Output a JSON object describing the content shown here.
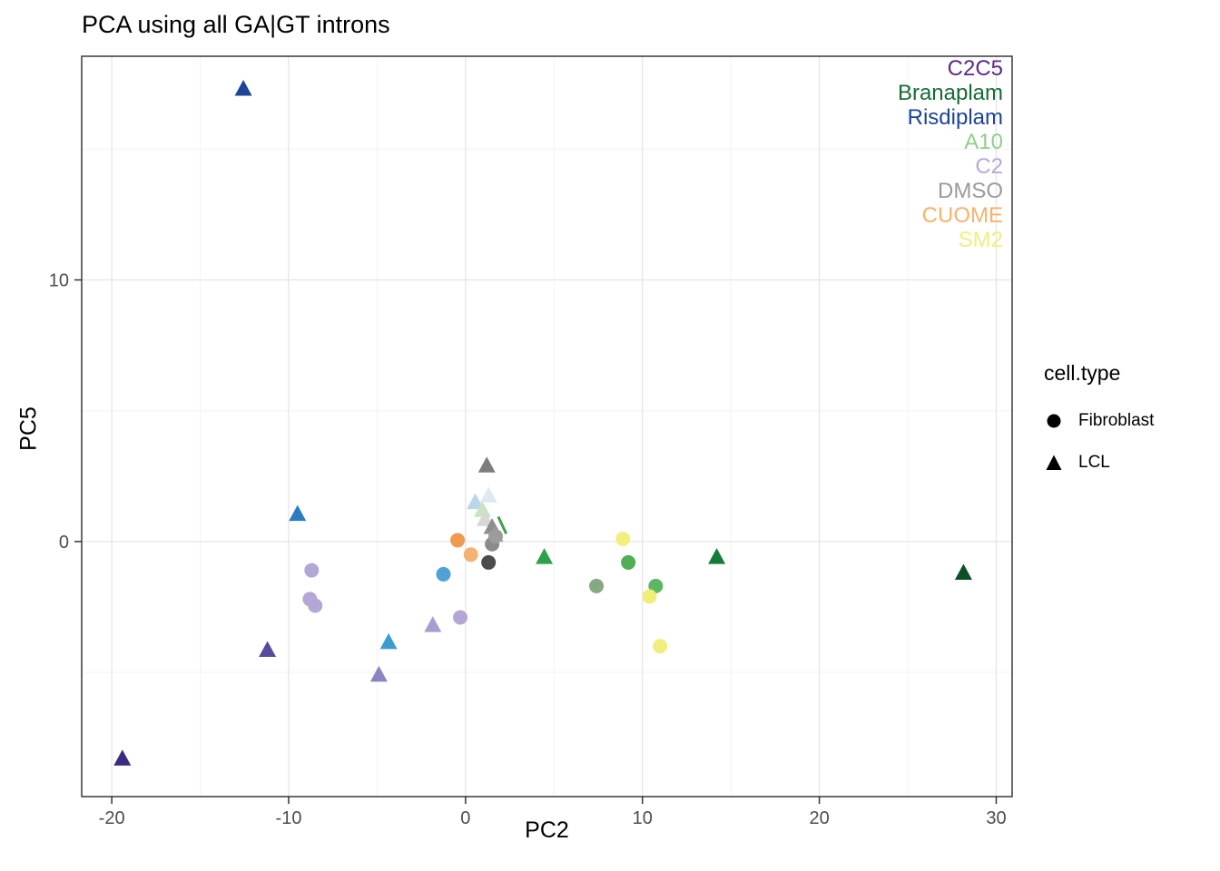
{
  "title": "PCA using all GA|GT introns",
  "axes": {
    "x_label": "PC2",
    "y_label": "PC5"
  },
  "legend": {
    "title": "cell.type",
    "items": [
      {
        "label": "Fibroblast",
        "shape": "circle"
      },
      {
        "label": "LCL",
        "shape": "triangle"
      }
    ]
  },
  "treatments": [
    {
      "label": "C2C5",
      "color": "#5b2a86"
    },
    {
      "label": "Branaplam",
      "color": "#166b35"
    },
    {
      "label": "Risdiplam",
      "color": "#1c4595"
    },
    {
      "label": "A10",
      "color": "#8fd08a"
    },
    {
      "label": "C2",
      "color": "#b6a9d8"
    },
    {
      "label": "DMSO",
      "color": "#9b9b9b"
    },
    {
      "label": "CUOME",
      "color": "#f6b26b"
    },
    {
      "label": "SM2",
      "color": "#f2ee7a"
    }
  ],
  "chart_data": {
    "type": "scatter",
    "title": "PCA using all GA|GT introns",
    "xlabel": "PC2",
    "ylabel": "PC5",
    "xlim": [
      -21.7,
      30.9
    ],
    "ylim": [
      -9.75,
      18.55
    ],
    "x_ticks": [
      -20,
      -10,
      0,
      10,
      20,
      30
    ],
    "y_ticks": [
      0,
      10
    ],
    "x_minor": [
      -15,
      -5,
      5,
      15,
      25
    ],
    "y_minor": [
      -5,
      5,
      15
    ],
    "grid": true,
    "legend_position": "right",
    "points": [
      {
        "x": -12.56,
        "y": 17.3,
        "shape": "triangle",
        "cell_type": "LCL",
        "treatment": "Risdiplam",
        "color": "#1b4596"
      },
      {
        "x": -19.4,
        "y": -8.3,
        "shape": "triangle",
        "cell_type": "LCL",
        "treatment": "C2C5",
        "color": "#3c2b80"
      },
      {
        "x": -11.2,
        "y": -4.15,
        "shape": "triangle",
        "cell_type": "LCL",
        "treatment": "C2C5",
        "color": "#5a4a9f"
      },
      {
        "x": -9.5,
        "y": 1.05,
        "shape": "triangle",
        "cell_type": "LCL",
        "treatment": "Risdiplam",
        "color": "#2d7cbf"
      },
      {
        "x": -4.9,
        "y": -5.1,
        "shape": "triangle",
        "cell_type": "LCL",
        "treatment": "C2",
        "color": "#8c85c3"
      },
      {
        "x": -4.35,
        "y": -3.85,
        "shape": "triangle",
        "cell_type": "LCL",
        "treatment": "Risdiplam",
        "color": "#3d9bd3"
      },
      {
        "x": -1.85,
        "y": -3.2,
        "shape": "triangle",
        "cell_type": "LCL",
        "treatment": "C2",
        "color": "#a59fd1"
      },
      {
        "x": 4.45,
        "y": -0.6,
        "shape": "triangle",
        "cell_type": "LCL",
        "treatment": "Branaplam",
        "color": "#2fa14e"
      },
      {
        "x": 14.2,
        "y": -0.6,
        "shape": "triangle",
        "cell_type": "LCL",
        "treatment": "Branaplam",
        "color": "#177a3a"
      },
      {
        "x": 28.15,
        "y": -1.2,
        "shape": "triangle",
        "cell_type": "LCL",
        "treatment": "Branaplam",
        "color": "#0d4f27"
      },
      {
        "x": 1.2,
        "y": 2.9,
        "shape": "triangle",
        "cell_type": "LCL",
        "treatment": "DMSO",
        "color": "#7d7d7d"
      },
      {
        "x": 0.55,
        "y": 1.5,
        "shape": "triangle",
        "cell_type": "LCL",
        "treatment": "Risdiplam",
        "color": "#b9d6ea"
      },
      {
        "x": 0.95,
        "y": 1.2,
        "shape": "triangle",
        "cell_type": "LCL",
        "treatment": "A10",
        "color": "#c8e4c3"
      },
      {
        "x": 1.3,
        "y": 1.75,
        "shape": "triangle",
        "cell_type": "LCL",
        "treatment": "DMSO",
        "color": "#dfe9ef"
      },
      {
        "x": 1.1,
        "y": 0.85,
        "shape": "triangle",
        "cell_type": "LCL",
        "treatment": "DMSO",
        "color": "#d8d8d8"
      },
      {
        "x": 1.5,
        "y": 0.55,
        "shape": "triangle",
        "cell_type": "LCL",
        "treatment": "DMSO",
        "color": "#8e8e8e"
      },
      {
        "x": 1.65,
        "y": 0.25,
        "shape": "triangle",
        "cell_type": "LCL",
        "treatment": "DMSO",
        "color": "#9a9a9a"
      },
      {
        "x": -8.7,
        "y": -1.1,
        "shape": "circle",
        "cell_type": "Fibroblast",
        "treatment": "C2",
        "color": "#b4a7d5"
      },
      {
        "x": -8.8,
        "y": -2.2,
        "shape": "circle",
        "cell_type": "Fibroblast",
        "treatment": "C2",
        "color": "#b4a7d5"
      },
      {
        "x": -8.5,
        "y": -2.45,
        "shape": "circle",
        "cell_type": "Fibroblast",
        "treatment": "C2",
        "color": "#b4a7d5"
      },
      {
        "x": -1.25,
        "y": -1.25,
        "shape": "circle",
        "cell_type": "Fibroblast",
        "treatment": "Risdiplam",
        "color": "#4fa1d7"
      },
      {
        "x": -0.3,
        "y": -2.9,
        "shape": "circle",
        "cell_type": "Fibroblast",
        "treatment": "C2",
        "color": "#b4a7d5"
      },
      {
        "x": -0.45,
        "y": 0.05,
        "shape": "circle",
        "cell_type": "Fibroblast",
        "treatment": "CUOME",
        "color": "#ef9a4f"
      },
      {
        "x": 0.3,
        "y": -0.5,
        "shape": "circle",
        "cell_type": "Fibroblast",
        "treatment": "CUOME",
        "color": "#f5b373"
      },
      {
        "x": 1.3,
        "y": -0.8,
        "shape": "circle",
        "cell_type": "Fibroblast",
        "treatment": "DMSO",
        "color": "#4c4c4c"
      },
      {
        "x": 1.5,
        "y": -0.1,
        "shape": "circle",
        "cell_type": "Fibroblast",
        "treatment": "DMSO",
        "color": "#8a8a8a"
      },
      {
        "x": 1.7,
        "y": 0.2,
        "shape": "circle",
        "cell_type": "Fibroblast",
        "treatment": "DMSO",
        "color": "#9c9c9c"
      },
      {
        "x": 7.4,
        "y": -1.7,
        "shape": "circle",
        "cell_type": "Fibroblast",
        "treatment": "A10",
        "color": "#86a97f"
      },
      {
        "x": 9.2,
        "y": -0.8,
        "shape": "circle",
        "cell_type": "Fibroblast",
        "treatment": "Branaplam",
        "color": "#4fae57"
      },
      {
        "x": 8.9,
        "y": 0.1,
        "shape": "circle",
        "cell_type": "Fibroblast",
        "treatment": "SM2",
        "color": "#f3ef7e"
      },
      {
        "x": 10.75,
        "y": -1.7,
        "shape": "circle",
        "cell_type": "Fibroblast",
        "treatment": "Branaplam",
        "color": "#5bb763"
      },
      {
        "x": 10.4,
        "y": -2.1,
        "shape": "circle",
        "cell_type": "Fibroblast",
        "treatment": "SM2",
        "color": "#f0ed7b"
      },
      {
        "x": 11.0,
        "y": -4.0,
        "shape": "circle",
        "cell_type": "Fibroblast",
        "treatment": "SM2",
        "color": "#f1ee7c"
      }
    ],
    "segments": [
      {
        "x1": 1.85,
        "y1": 0.95,
        "x2": 2.3,
        "y2": 0.3,
        "color": "#3f9e4d"
      }
    ]
  }
}
